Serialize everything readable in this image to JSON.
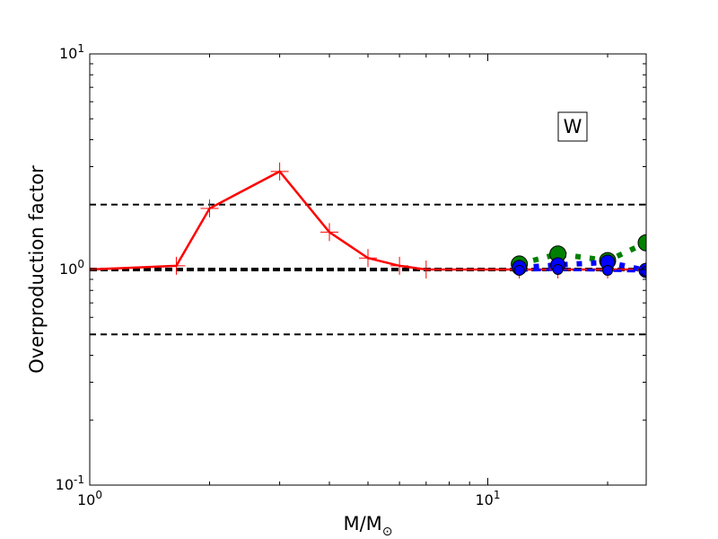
{
  "chart_data": {
    "type": "line",
    "element": "W",
    "xlabel": "M/M",
    "xlabel_sub": "⊙",
    "ylabel": "Overproduction factor",
    "xscale": "log",
    "yscale": "log",
    "xlim": [
      1,
      25
    ],
    "ylim": [
      0.1,
      10
    ],
    "x_ticks": [
      {
        "value": 1,
        "base": "10",
        "exp": "0"
      },
      {
        "value": 10,
        "base": "10",
        "exp": "1"
      }
    ],
    "y_ticks": [
      {
        "value": 0.1,
        "base": "10",
        "exp": "-1"
      },
      {
        "value": 1,
        "base": "10",
        "exp": "0"
      },
      {
        "value": 10,
        "base": "10",
        "exp": "1"
      }
    ],
    "reference_lines": [
      {
        "y": 2,
        "style": "dashed",
        "color": "#000000",
        "weight": "thin"
      },
      {
        "y": 1,
        "style": "dashed",
        "color": "#000000",
        "weight": "thick"
      },
      {
        "y": 0.5,
        "style": "dashed",
        "color": "#000000",
        "weight": "thin"
      }
    ],
    "series": [
      {
        "color": "#ff0000",
        "line": "solid",
        "marker": "plus",
        "x": [
          1,
          1.65,
          2,
          3,
          4,
          5,
          6,
          7,
          12,
          15,
          20,
          25
        ],
        "y": [
          1.0,
          1.04,
          1.92,
          2.85,
          1.49,
          1.13,
          1.04,
          1.0,
          1.0,
          1.0,
          1.0,
          1.0
        ]
      },
      {
        "color": "#008000",
        "line": "dotted-thick",
        "marker": "circle-large",
        "x": [
          12,
          15,
          20,
          25
        ],
        "y": [
          1.06,
          1.18,
          1.1,
          1.33
        ]
      },
      {
        "color": "#0000ff",
        "line": "dotted-thick",
        "marker": "circle-medium",
        "x": [
          12,
          15,
          20,
          25
        ],
        "y": [
          1.02,
          1.05,
          1.08,
          0.99
        ]
      },
      {
        "color": "#0000ff",
        "line": "dashed",
        "marker": "circle-small",
        "x": [
          12,
          15,
          20,
          25
        ],
        "y": [
          0.99,
          1.0,
          0.99,
          0.98
        ]
      }
    ]
  }
}
